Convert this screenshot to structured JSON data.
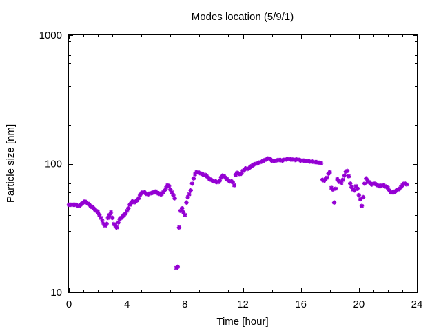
{
  "chart_data": {
    "type": "scatter",
    "title": "Modes location (5/9/1)",
    "xlabel": "Time [hour]",
    "ylabel": "Particle size [nm]",
    "xlim": [
      0,
      24
    ],
    "ylim": [
      10,
      1000
    ],
    "yscale": "log",
    "grid": false,
    "legend": "none",
    "marker_color": "#9400d3",
    "marker": "asterisk",
    "xticks": [
      0,
      4,
      8,
      12,
      16,
      20,
      24
    ],
    "xtick_labels": [
      "0",
      "4",
      "8",
      "12",
      "16",
      "20",
      "24"
    ],
    "yticks": [
      10,
      100,
      1000
    ],
    "ytick_labels": [
      "10",
      "100",
      "1000"
    ],
    "series": [
      {
        "points": [
          [
            0.0,
            48
          ],
          [
            0.1,
            48
          ],
          [
            0.2,
            48
          ],
          [
            0.3,
            48
          ],
          [
            0.4,
            48
          ],
          [
            0.5,
            48
          ],
          [
            0.6,
            47
          ],
          [
            0.7,
            47
          ],
          [
            0.8,
            48
          ],
          [
            0.9,
            49
          ],
          [
            1.0,
            50
          ],
          [
            1.1,
            51
          ],
          [
            1.2,
            50
          ],
          [
            1.3,
            49
          ],
          [
            1.4,
            48
          ],
          [
            1.5,
            47
          ],
          [
            1.6,
            46
          ],
          [
            1.7,
            45
          ],
          [
            1.8,
            44
          ],
          [
            1.9,
            43
          ],
          [
            2.0,
            42
          ],
          [
            2.1,
            40
          ],
          [
            2.2,
            38
          ],
          [
            2.3,
            36
          ],
          [
            2.4,
            34
          ],
          [
            2.5,
            33
          ],
          [
            2.6,
            34
          ],
          [
            2.7,
            38
          ],
          [
            2.8,
            40
          ],
          [
            2.9,
            42
          ],
          [
            3.0,
            38
          ],
          [
            3.1,
            34
          ],
          [
            3.2,
            33
          ],
          [
            3.3,
            32
          ],
          [
            3.4,
            35
          ],
          [
            3.5,
            37
          ],
          [
            3.6,
            38
          ],
          [
            3.7,
            39
          ],
          [
            3.8,
            40
          ],
          [
            3.9,
            41
          ],
          [
            4.0,
            43
          ],
          [
            4.1,
            45
          ],
          [
            4.2,
            48
          ],
          [
            4.3,
            50
          ],
          [
            4.4,
            51
          ],
          [
            4.5,
            50
          ],
          [
            4.6,
            51
          ],
          [
            4.7,
            52
          ],
          [
            4.8,
            54
          ],
          [
            4.9,
            57
          ],
          [
            5.0,
            59
          ],
          [
            5.1,
            60
          ],
          [
            5.2,
            60
          ],
          [
            5.3,
            59
          ],
          [
            5.4,
            58
          ],
          [
            5.5,
            58
          ],
          [
            5.6,
            59
          ],
          [
            5.7,
            59
          ],
          [
            5.8,
            60
          ],
          [
            5.9,
            60
          ],
          [
            6.0,
            61
          ],
          [
            6.1,
            59
          ],
          [
            6.2,
            59
          ],
          [
            6.3,
            58
          ],
          [
            6.4,
            58
          ],
          [
            6.5,
            60
          ],
          [
            6.6,
            62
          ],
          [
            6.7,
            65
          ],
          [
            6.8,
            68
          ],
          [
            6.9,
            67
          ],
          [
            7.0,
            63
          ],
          [
            7.1,
            60
          ],
          [
            7.2,
            57
          ],
          [
            7.3,
            54
          ],
          [
            7.4,
            15.5
          ],
          [
            7.5,
            15.8
          ],
          [
            7.6,
            32
          ],
          [
            7.7,
            43
          ],
          [
            7.8,
            45
          ],
          [
            7.9,
            42
          ],
          [
            8.0,
            40
          ],
          [
            8.1,
            50
          ],
          [
            8.2,
            55
          ],
          [
            8.3,
            58
          ],
          [
            8.4,
            62
          ],
          [
            8.5,
            70
          ],
          [
            8.6,
            77
          ],
          [
            8.7,
            83
          ],
          [
            8.8,
            86
          ],
          [
            8.9,
            86
          ],
          [
            9.0,
            85
          ],
          [
            9.1,
            84
          ],
          [
            9.2,
            83
          ],
          [
            9.3,
            82
          ],
          [
            9.4,
            82
          ],
          [
            9.5,
            80
          ],
          [
            9.6,
            78
          ],
          [
            9.7,
            76
          ],
          [
            9.8,
            75
          ],
          [
            9.9,
            74
          ],
          [
            10.0,
            73
          ],
          [
            10.1,
            73
          ],
          [
            10.2,
            72
          ],
          [
            10.3,
            72
          ],
          [
            10.4,
            74
          ],
          [
            10.5,
            78
          ],
          [
            10.6,
            81
          ],
          [
            10.7,
            80
          ],
          [
            10.8,
            78
          ],
          [
            10.9,
            76
          ],
          [
            11.0,
            74
          ],
          [
            11.1,
            73
          ],
          [
            11.2,
            73
          ],
          [
            11.3,
            72
          ],
          [
            11.4,
            68
          ],
          [
            11.5,
            82
          ],
          [
            11.6,
            85
          ],
          [
            11.7,
            84
          ],
          [
            11.8,
            83
          ],
          [
            11.9,
            84
          ],
          [
            12.0,
            88
          ],
          [
            12.1,
            90
          ],
          [
            12.2,
            92
          ],
          [
            12.3,
            91
          ],
          [
            12.4,
            92
          ],
          [
            12.5,
            94
          ],
          [
            12.6,
            96
          ],
          [
            12.7,
            98
          ],
          [
            12.8,
            99
          ],
          [
            12.9,
            100
          ],
          [
            13.0,
            101
          ],
          [
            13.1,
            102
          ],
          [
            13.2,
            103
          ],
          [
            13.3,
            104
          ],
          [
            13.4,
            105
          ],
          [
            13.5,
            107
          ],
          [
            13.6,
            108
          ],
          [
            13.7,
            110
          ],
          [
            13.8,
            110
          ],
          [
            13.9,
            108
          ],
          [
            14.0,
            106
          ],
          [
            14.1,
            105
          ],
          [
            14.2,
            105
          ],
          [
            14.3,
            106
          ],
          [
            14.4,
            107
          ],
          [
            14.5,
            107
          ],
          [
            14.6,
            107
          ],
          [
            14.7,
            106
          ],
          [
            14.8,
            107
          ],
          [
            14.9,
            108
          ],
          [
            15.0,
            108
          ],
          [
            15.1,
            109
          ],
          [
            15.2,
            109
          ],
          [
            15.3,
            108
          ],
          [
            15.4,
            108
          ],
          [
            15.5,
            108
          ],
          [
            15.6,
            107
          ],
          [
            15.7,
            108
          ],
          [
            15.8,
            108
          ],
          [
            15.9,
            107
          ],
          [
            16.0,
            106
          ],
          [
            16.1,
            106
          ],
          [
            16.2,
            106
          ],
          [
            16.3,
            105
          ],
          [
            16.4,
            105
          ],
          [
            16.5,
            105
          ],
          [
            16.6,
            104
          ],
          [
            16.7,
            104
          ],
          [
            16.8,
            104
          ],
          [
            16.9,
            103
          ],
          [
            17.0,
            103
          ],
          [
            17.1,
            103
          ],
          [
            17.2,
            102
          ],
          [
            17.3,
            102
          ],
          [
            17.4,
            101
          ],
          [
            17.5,
            75
          ],
          [
            17.6,
            74
          ],
          [
            17.7,
            76
          ],
          [
            17.8,
            78
          ],
          [
            17.9,
            84
          ],
          [
            18.0,
            86
          ],
          [
            18.1,
            65
          ],
          [
            18.2,
            63
          ],
          [
            18.3,
            50
          ],
          [
            18.4,
            64
          ],
          [
            18.5,
            76
          ],
          [
            18.6,
            74
          ],
          [
            18.7,
            72
          ],
          [
            18.8,
            71
          ],
          [
            18.9,
            75
          ],
          [
            19.0,
            81
          ],
          [
            19.1,
            87
          ],
          [
            19.2,
            88
          ],
          [
            19.3,
            80
          ],
          [
            19.4,
            70
          ],
          [
            19.5,
            66
          ],
          [
            19.6,
            63
          ],
          [
            19.7,
            62
          ],
          [
            19.8,
            67
          ],
          [
            19.9,
            64
          ],
          [
            20.0,
            57
          ],
          [
            20.1,
            53
          ],
          [
            20.2,
            47
          ],
          [
            20.3,
            55
          ],
          [
            20.4,
            70
          ],
          [
            20.5,
            77
          ],
          [
            20.6,
            74
          ],
          [
            20.7,
            72
          ],
          [
            20.8,
            70
          ],
          [
            20.9,
            69
          ],
          [
            21.0,
            70
          ],
          [
            21.1,
            70
          ],
          [
            21.2,
            69
          ],
          [
            21.3,
            68
          ],
          [
            21.4,
            67
          ],
          [
            21.5,
            67
          ],
          [
            21.6,
            68
          ],
          [
            21.7,
            68
          ],
          [
            21.8,
            67
          ],
          [
            21.9,
            66
          ],
          [
            22.0,
            65
          ],
          [
            22.1,
            62
          ],
          [
            22.2,
            60
          ],
          [
            22.3,
            60
          ],
          [
            22.4,
            60
          ],
          [
            22.5,
            61
          ],
          [
            22.6,
            62
          ],
          [
            22.7,
            63
          ],
          [
            22.8,
            64
          ],
          [
            22.9,
            66
          ],
          [
            23.0,
            68
          ],
          [
            23.1,
            70
          ],
          [
            23.2,
            70
          ],
          [
            23.3,
            69
          ]
        ]
      }
    ]
  }
}
